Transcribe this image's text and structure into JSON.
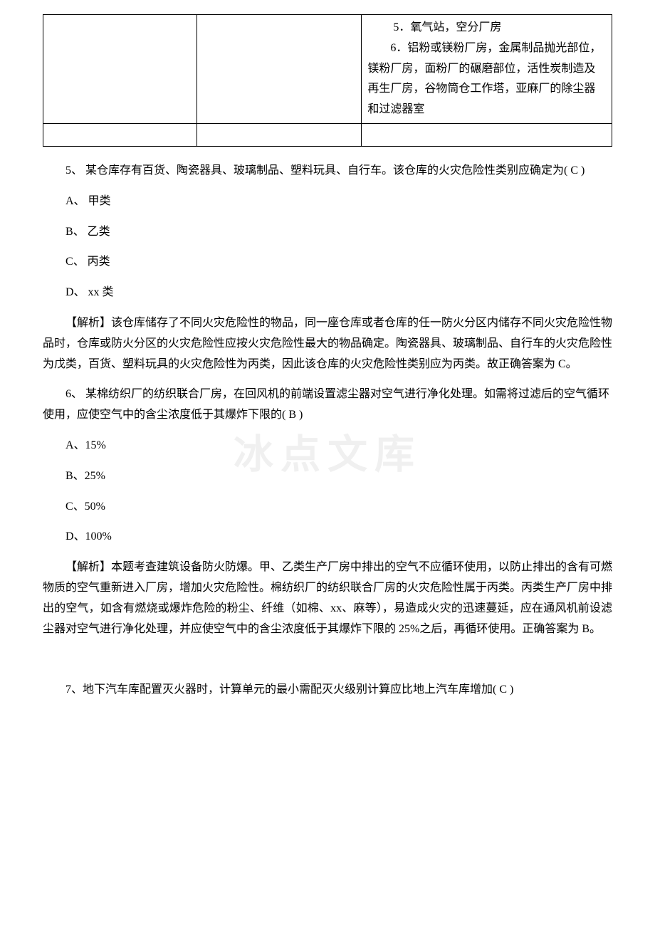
{
  "table": {
    "rows": [
      {
        "col1": "",
        "col2": "",
        "col3": "　　5．氧气站，空分厂房\n　　6．铝粉或镁粉厂房，金属制品抛光部位，镁粉厂房，面粉厂的碾磨部位，活性炭制造及再生厂房，谷物筒仓工作塔，亚麻厂的除尘器和过滤器室"
      },
      {
        "col1": "",
        "col2": "",
        "col3": ""
      }
    ]
  },
  "q5": {
    "stem": "5、 某仓库存有百货、陶瓷器具、玻璃制品、塑料玩具、自行车。该仓库的火灾危险性类别应确定为( C )",
    "options": {
      "a": "A、 甲类",
      "b": "B、 乙类",
      "c": "C、 丙类",
      "d": "D、 xx 类"
    },
    "explanation": "【解析】该仓库储存了不同火灾危险性的物品，同一座仓库或者仓库的任一防火分区内储存不同火灾危险性物品时，仓库或防火分区的火灾危险性应按火灾危险性最大的物品确定。陶瓷器具、玻璃制品、自行车的火灾危险性为戊类，百货、塑料玩具的火灾危险性为丙类，因此该仓库的火灾危险性类别应为丙类。故正确答案为 C。"
  },
  "q6": {
    "stem": "6、 某棉纺织厂的纺织联合厂房，在回风机的前端设置滤尘器对空气进行净化处理。如需将过滤后的空气循环使用，应使空气中的含尘浓度低于其爆炸下限的( B )",
    "options": {
      "a": "A、15%",
      "b": "B、25%",
      "c": "C、50%",
      "d": "D、100%"
    },
    "explanation": "【解析】本题考查建筑设备防火防爆。甲、乙类生产厂房中排出的空气不应循环使用，以防止排出的含有可燃物质的空气重新进入厂房，增加火灾危险性。棉纺织厂的纺织联合厂房的火灾危险性属于丙类。丙类生产厂房中排出的空气，如含有燃烧或爆炸危险的粉尘、纤维（如棉、xx、麻等），易造成火灾的迅速蔓延，应在通风机前设滤尘器对空气进行净化处理，并应使空气中的含尘浓度低于其爆炸下限的 25%之后，再循环使用。正确答案为 B。"
  },
  "q7": {
    "stem": "7、地下汽车库配置灭火器时，计算单元的最小需配灭火级别计算应比地上汽车库增加( C )"
  },
  "watermark": "冰点文库"
}
